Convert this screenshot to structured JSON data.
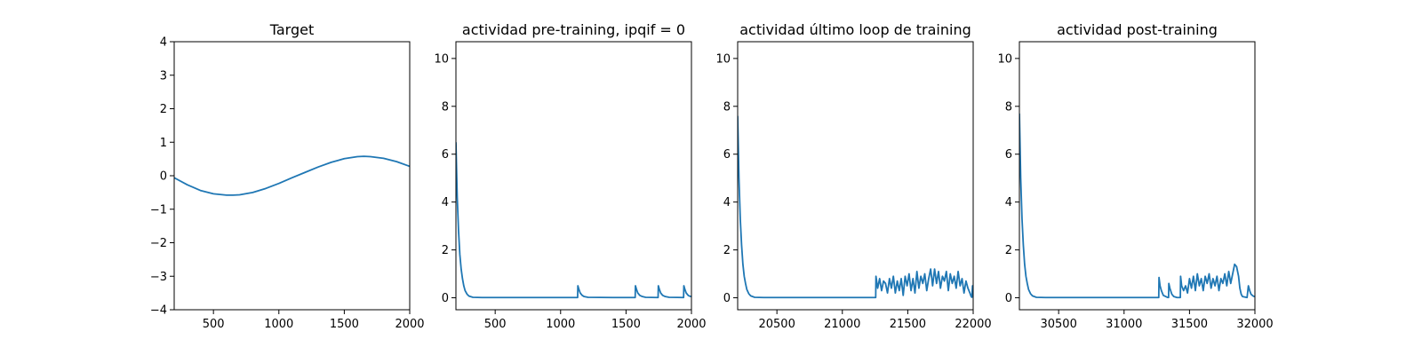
{
  "chart_data": [
    {
      "type": "line",
      "title": "Target",
      "xlim": [
        200,
        2000
      ],
      "ylim": [
        -4,
        4
      ],
      "xticks": [
        500,
        1000,
        1500,
        2000
      ],
      "yticks": [
        -4,
        -3,
        -2,
        -1,
        0,
        1,
        2,
        3,
        4
      ],
      "series": [
        {
          "color": "#1f77b4",
          "x": [
            200,
            300,
            400,
            500,
            600,
            650,
            700,
            800,
            900,
            1000,
            1100,
            1200,
            1300,
            1400,
            1500,
            1600,
            1650,
            1700,
            1800,
            1900,
            2000
          ],
          "y": [
            -0.06,
            -0.27,
            -0.44,
            -0.54,
            -0.58,
            -0.58,
            -0.57,
            -0.5,
            -0.38,
            -0.23,
            -0.06,
            0.1,
            0.26,
            0.4,
            0.51,
            0.57,
            0.58,
            0.57,
            0.52,
            0.42,
            0.28
          ]
        }
      ]
    },
    {
      "type": "line",
      "title": "actividad pre-training, ipqif = 0",
      "xlim": [
        200,
        2000
      ],
      "ylim": [
        -0.5,
        10.7
      ],
      "xticks": [
        500,
        1000,
        1500,
        2000
      ],
      "yticks": [
        0,
        2,
        4,
        6,
        8,
        10
      ],
      "series": [
        {
          "color": "#1f77b4",
          "x": [
            200,
            210,
            220,
            230,
            240,
            250,
            260,
            270,
            285,
            300,
            330,
            400,
            600,
            800,
            1000,
            1130,
            1132,
            1140,
            1150,
            1165,
            1180,
            1210,
            1400,
            1570,
            1572,
            1580,
            1590,
            1605,
            1625,
            1650,
            1745,
            1747,
            1755,
            1765,
            1780,
            1800,
            1830,
            1940,
            1942,
            1950,
            1960,
            1975,
            1990,
            2000
          ],
          "y": [
            6.5,
            4.2,
            2.8,
            1.8,
            1.2,
            0.8,
            0.5,
            0.3,
            0.15,
            0.07,
            0.02,
            0.01,
            0.01,
            0.01,
            0.01,
            0.01,
            0.5,
            0.35,
            0.2,
            0.1,
            0.05,
            0.02,
            0.01,
            0.01,
            0.5,
            0.35,
            0.2,
            0.1,
            0.05,
            0.02,
            0.01,
            0.5,
            0.35,
            0.2,
            0.1,
            0.05,
            0.02,
            0.01,
            0.5,
            0.35,
            0.2,
            0.1,
            0.06,
            0.05
          ]
        }
      ]
    },
    {
      "type": "line",
      "title": "actividad último loop de training",
      "xlim": [
        20200,
        22000
      ],
      "ylim": [
        -0.5,
        10.7
      ],
      "xticks": [
        20500,
        21000,
        21500,
        22000
      ],
      "yticks": [
        0,
        2,
        4,
        6,
        8,
        10
      ],
      "series": [
        {
          "color": "#1f77b4",
          "x": [
            20200,
            20210,
            20220,
            20230,
            20240,
            20250,
            20260,
            20270,
            20285,
            20300,
            20330,
            20400,
            20600,
            20800,
            21000,
            21255,
            21257,
            21270,
            21285,
            21300,
            21315,
            21330,
            21345,
            21360,
            21375,
            21390,
            21405,
            21420,
            21435,
            21450,
            21465,
            21480,
            21495,
            21510,
            21525,
            21540,
            21555,
            21570,
            21585,
            21600,
            21615,
            21630,
            21645,
            21660,
            21675,
            21690,
            21705,
            21720,
            21735,
            21750,
            21765,
            21780,
            21795,
            21810,
            21825,
            21840,
            21855,
            21870,
            21885,
            21900,
            21915,
            21930,
            21945,
            21960,
            21975,
            21985,
            21990,
            21995,
            22000
          ],
          "y": [
            7.6,
            5.0,
            3.3,
            2.2,
            1.4,
            0.9,
            0.6,
            0.35,
            0.17,
            0.08,
            0.02,
            0.01,
            0.01,
            0.01,
            0.01,
            0.01,
            0.9,
            0.4,
            0.8,
            0.3,
            0.7,
            0.6,
            0.2,
            0.8,
            0.4,
            0.9,
            0.2,
            0.7,
            0.3,
            0.8,
            0.1,
            0.9,
            0.5,
            1.0,
            0.3,
            0.8,
            0.2,
            1.1,
            0.4,
            0.9,
            0.6,
            1.0,
            0.3,
            0.8,
            1.2,
            0.5,
            1.2,
            0.6,
            1.1,
            0.4,
            0.9,
            0.7,
            1.1,
            0.3,
            1.0,
            0.6,
            0.9,
            0.4,
            1.1,
            0.5,
            0.8,
            0.2,
            0.7,
            0.4,
            0.2,
            0.05,
            0.02,
            0.5,
            0.1
          ]
        }
      ]
    },
    {
      "type": "line",
      "title": "actividad post-training",
      "xlim": [
        30200,
        32000
      ],
      "ylim": [
        -0.5,
        10.7
      ],
      "xticks": [
        30500,
        31000,
        31500,
        32000
      ],
      "yticks": [
        0,
        2,
        4,
        6,
        8,
        10
      ],
      "series": [
        {
          "color": "#1f77b4",
          "x": [
            30200,
            30210,
            30220,
            30230,
            30240,
            30250,
            30260,
            30270,
            30285,
            30300,
            30330,
            30400,
            30600,
            30800,
            31000,
            31265,
            31267,
            31275,
            31285,
            31300,
            31330,
            31340,
            31342,
            31350,
            31365,
            31380,
            31405,
            31430,
            31432,
            31440,
            31455,
            31470,
            31485,
            31500,
            31515,
            31530,
            31545,
            31560,
            31575,
            31590,
            31605,
            31620,
            31635,
            31650,
            31665,
            31680,
            31695,
            31710,
            31725,
            31740,
            31755,
            31770,
            31785,
            31800,
            31815,
            31830,
            31845,
            31860,
            31875,
            31885,
            31895,
            31905,
            31940,
            31950,
            31960,
            31970,
            31980,
            31990,
            32000
          ],
          "y": [
            7.7,
            5.0,
            3.3,
            2.2,
            1.4,
            0.9,
            0.6,
            0.35,
            0.17,
            0.08,
            0.02,
            0.01,
            0.01,
            0.01,
            0.01,
            0.01,
            0.85,
            0.5,
            0.3,
            0.1,
            0.02,
            0.01,
            0.6,
            0.4,
            0.15,
            0.05,
            0.01,
            0.01,
            0.9,
            0.5,
            0.3,
            0.5,
            0.2,
            0.8,
            0.4,
            0.9,
            0.3,
            1.0,
            0.5,
            0.8,
            0.3,
            0.9,
            0.6,
            1.0,
            0.4,
            0.8,
            0.5,
            0.9,
            0.3,
            0.8,
            0.6,
            1.0,
            0.5,
            1.1,
            0.6,
            1.0,
            1.4,
            1.3,
            0.9,
            0.4,
            0.15,
            0.05,
            0.01,
            0.5,
            0.3,
            0.15,
            0.1,
            0.06,
            0.05
          ]
        }
      ]
    }
  ]
}
